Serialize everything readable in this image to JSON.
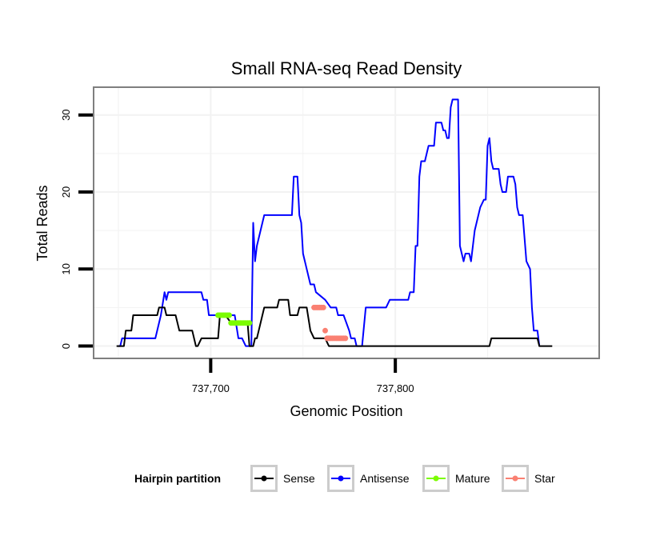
{
  "chart_data": {
    "type": "line",
    "title": "Small RNA-seq Read Density",
    "xlabel": "Genomic Position",
    "ylabel": "Total Reads",
    "xlim": [
      737637,
      737910
    ],
    "ylim": [
      -1.5,
      33.5
    ],
    "x_ticks": [
      737700,
      737800
    ],
    "x_tick_labels": [
      "737,700",
      "737,800"
    ],
    "y_ticks": [
      0,
      10,
      20,
      30
    ],
    "y_tick_labels": [
      "0",
      "10",
      "20",
      "30"
    ],
    "grid": true,
    "legend": {
      "title": "Hairpin partition",
      "position": "bottom",
      "entries": [
        {
          "name": "Sense",
          "color": "#000000"
        },
        {
          "name": "Antisense",
          "color": "#0000ff"
        },
        {
          "name": "Mature",
          "color": "#7cfc00"
        },
        {
          "name": "Star",
          "color": "#fa8072"
        }
      ]
    },
    "series": [
      {
        "name": "Antisense",
        "color": "#0000ff",
        "kind": "line",
        "points": [
          [
            737650,
            0
          ],
          [
            737651,
            0
          ],
          [
            737652,
            1
          ],
          [
            737653,
            1
          ],
          [
            737670,
            1
          ],
          [
            737673,
            4
          ],
          [
            737675,
            7
          ],
          [
            737676,
            6
          ],
          [
            737677,
            7
          ],
          [
            737695,
            7
          ],
          [
            737696,
            6
          ],
          [
            737698,
            6
          ],
          [
            737699,
            4
          ],
          [
            737713,
            4
          ],
          [
            737715,
            1
          ],
          [
            737717,
            1
          ],
          [
            737719,
            0
          ],
          [
            737722,
            0
          ],
          [
            737723,
            16
          ],
          [
            737724,
            11
          ],
          [
            737725,
            13
          ],
          [
            737727,
            15
          ],
          [
            737729,
            17
          ],
          [
            737744,
            17
          ],
          [
            737745,
            22
          ],
          [
            737747,
            22
          ],
          [
            737748,
            17
          ],
          [
            737749,
            16
          ],
          [
            737750,
            12
          ],
          [
            737752,
            10
          ],
          [
            737754,
            8
          ],
          [
            737756,
            8
          ],
          [
            737757,
            7
          ],
          [
            737762,
            6
          ],
          [
            737765,
            5
          ],
          [
            737768,
            5
          ],
          [
            737769,
            4
          ],
          [
            737772,
            4
          ],
          [
            737775,
            2
          ],
          [
            737776,
            1
          ],
          [
            737778,
            1
          ],
          [
            737779,
            0
          ],
          [
            737782,
            0
          ],
          [
            737784,
            5
          ],
          [
            737795,
            5
          ],
          [
            737797,
            6
          ],
          [
            737807,
            6
          ],
          [
            737808,
            7
          ],
          [
            737810,
            7
          ],
          [
            737811,
            13
          ],
          [
            737812,
            13
          ],
          [
            737813,
            22
          ],
          [
            737814,
            24
          ],
          [
            737816,
            24
          ],
          [
            737818,
            26
          ],
          [
            737821,
            26
          ],
          [
            737822,
            29
          ],
          [
            737825,
            29
          ],
          [
            737826,
            28
          ],
          [
            737827,
            28
          ],
          [
            737828,
            27
          ],
          [
            737829,
            27
          ],
          [
            737830,
            31
          ],
          [
            737831,
            32
          ],
          [
            737834,
            32
          ],
          [
            737835,
            13
          ],
          [
            737836,
            12
          ],
          [
            737837,
            11
          ],
          [
            737838,
            12
          ],
          [
            737840,
            12
          ],
          [
            737841,
            11
          ],
          [
            737842,
            13
          ],
          [
            737843,
            15
          ],
          [
            737844,
            16
          ],
          [
            737845,
            17
          ],
          [
            737846,
            18
          ],
          [
            737848,
            19
          ],
          [
            737849,
            19
          ],
          [
            737850,
            26
          ],
          [
            737851,
            27
          ],
          [
            737852,
            24
          ],
          [
            737853,
            23
          ],
          [
            737856,
            23
          ],
          [
            737857,
            21
          ],
          [
            737858,
            20
          ],
          [
            737860,
            20
          ],
          [
            737861,
            22
          ],
          [
            737864,
            22
          ],
          [
            737865,
            21
          ],
          [
            737866,
            18
          ],
          [
            737867,
            17
          ],
          [
            737869,
            17
          ],
          [
            737870,
            14
          ],
          [
            737871,
            11
          ],
          [
            737873,
            10
          ],
          [
            737874,
            5
          ],
          [
            737875,
            2
          ],
          [
            737877,
            2
          ],
          [
            737878,
            0
          ]
        ]
      },
      {
        "name": "Sense",
        "color": "#000000",
        "kind": "line",
        "points": [
          [
            737649,
            0
          ],
          [
            737653,
            0
          ],
          [
            737654,
            2
          ],
          [
            737657,
            2
          ],
          [
            737658,
            4
          ],
          [
            737671,
            4
          ],
          [
            737672,
            5
          ],
          [
            737675,
            5
          ],
          [
            737676,
            4
          ],
          [
            737681,
            4
          ],
          [
            737683,
            2
          ],
          [
            737690,
            2
          ],
          [
            737692,
            0
          ],
          [
            737693,
            0
          ],
          [
            737695,
            1
          ],
          [
            737704,
            1
          ],
          [
            737705,
            4
          ],
          [
            737708,
            4
          ],
          [
            737711,
            3
          ],
          [
            737716,
            3
          ],
          [
            737720,
            3
          ],
          [
            737721,
            0
          ],
          [
            737723,
            0
          ],
          [
            737724,
            1
          ],
          [
            737725,
            1
          ],
          [
            737726,
            2
          ],
          [
            737728,
            4
          ],
          [
            737729,
            5
          ],
          [
            737736,
            5
          ],
          [
            737737,
            6
          ],
          [
            737742,
            6
          ],
          [
            737743,
            4
          ],
          [
            737747,
            4
          ],
          [
            737748,
            5
          ],
          [
            737752,
            5
          ],
          [
            737754,
            2
          ],
          [
            737756,
            1
          ],
          [
            737762,
            1
          ],
          [
            737764,
            0
          ],
          [
            737851,
            0
          ],
          [
            737852,
            1
          ],
          [
            737877,
            1
          ],
          [
            737878,
            0
          ],
          [
            737885,
            0
          ]
        ]
      },
      {
        "name": "Mature",
        "color": "#7cfc00",
        "kind": "dots",
        "points": [
          [
            737704,
            4
          ],
          [
            737705,
            4
          ],
          [
            737706,
            4
          ],
          [
            737707,
            4
          ],
          [
            737708,
            4
          ],
          [
            737709,
            4
          ],
          [
            737710,
            4
          ],
          [
            737711,
            3
          ],
          [
            737712,
            3
          ],
          [
            737713,
            3
          ],
          [
            737714,
            3
          ],
          [
            737715,
            3
          ],
          [
            737716,
            3
          ],
          [
            737717,
            3
          ],
          [
            737718,
            3
          ],
          [
            737719,
            3
          ],
          [
            737720,
            3
          ],
          [
            737721,
            3
          ]
        ]
      },
      {
        "name": "Star",
        "color": "#fa8072",
        "kind": "dots",
        "points": [
          [
            737756,
            5
          ],
          [
            737757,
            5
          ],
          [
            737758,
            5
          ],
          [
            737759,
            5
          ],
          [
            737760,
            5
          ],
          [
            737761,
            5
          ],
          [
            737762,
            2
          ],
          [
            737763,
            1
          ],
          [
            737764,
            1
          ],
          [
            737765,
            1
          ],
          [
            737766,
            1
          ],
          [
            737767,
            1
          ],
          [
            737768,
            1
          ],
          [
            737769,
            1
          ],
          [
            737770,
            1
          ],
          [
            737771,
            1
          ],
          [
            737772,
            1
          ],
          [
            737773,
            1
          ]
        ]
      }
    ]
  }
}
